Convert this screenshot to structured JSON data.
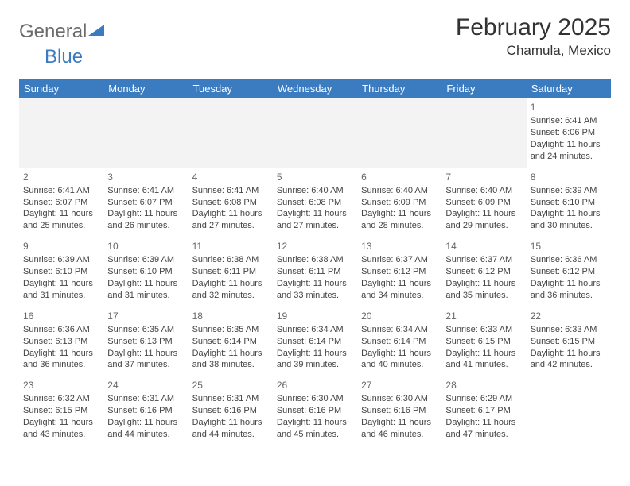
{
  "logo": {
    "part1": "General",
    "part2": "Blue"
  },
  "title": "February 2025",
  "location": "Chamula, Mexico",
  "colors": {
    "header_bg": "#3b7bbf",
    "header_text": "#ffffff",
    "body_text": "#444444",
    "logo_gray": "#6b6b6b",
    "logo_blue": "#3b7bbf",
    "empty_bg": "#f3f3f3"
  },
  "day_headers": [
    "Sunday",
    "Monday",
    "Tuesday",
    "Wednesday",
    "Thursday",
    "Friday",
    "Saturday"
  ],
  "weeks": [
    [
      null,
      null,
      null,
      null,
      null,
      null,
      {
        "n": "1",
        "sr": "Sunrise: 6:41 AM",
        "ss": "Sunset: 6:06 PM",
        "dl": "Daylight: 11 hours and 24 minutes."
      }
    ],
    [
      {
        "n": "2",
        "sr": "Sunrise: 6:41 AM",
        "ss": "Sunset: 6:07 PM",
        "dl": "Daylight: 11 hours and 25 minutes."
      },
      {
        "n": "3",
        "sr": "Sunrise: 6:41 AM",
        "ss": "Sunset: 6:07 PM",
        "dl": "Daylight: 11 hours and 26 minutes."
      },
      {
        "n": "4",
        "sr": "Sunrise: 6:41 AM",
        "ss": "Sunset: 6:08 PM",
        "dl": "Daylight: 11 hours and 27 minutes."
      },
      {
        "n": "5",
        "sr": "Sunrise: 6:40 AM",
        "ss": "Sunset: 6:08 PM",
        "dl": "Daylight: 11 hours and 27 minutes."
      },
      {
        "n": "6",
        "sr": "Sunrise: 6:40 AM",
        "ss": "Sunset: 6:09 PM",
        "dl": "Daylight: 11 hours and 28 minutes."
      },
      {
        "n": "7",
        "sr": "Sunrise: 6:40 AM",
        "ss": "Sunset: 6:09 PM",
        "dl": "Daylight: 11 hours and 29 minutes."
      },
      {
        "n": "8",
        "sr": "Sunrise: 6:39 AM",
        "ss": "Sunset: 6:10 PM",
        "dl": "Daylight: 11 hours and 30 minutes."
      }
    ],
    [
      {
        "n": "9",
        "sr": "Sunrise: 6:39 AM",
        "ss": "Sunset: 6:10 PM",
        "dl": "Daylight: 11 hours and 31 minutes."
      },
      {
        "n": "10",
        "sr": "Sunrise: 6:39 AM",
        "ss": "Sunset: 6:10 PM",
        "dl": "Daylight: 11 hours and 31 minutes."
      },
      {
        "n": "11",
        "sr": "Sunrise: 6:38 AM",
        "ss": "Sunset: 6:11 PM",
        "dl": "Daylight: 11 hours and 32 minutes."
      },
      {
        "n": "12",
        "sr": "Sunrise: 6:38 AM",
        "ss": "Sunset: 6:11 PM",
        "dl": "Daylight: 11 hours and 33 minutes."
      },
      {
        "n": "13",
        "sr": "Sunrise: 6:37 AM",
        "ss": "Sunset: 6:12 PM",
        "dl": "Daylight: 11 hours and 34 minutes."
      },
      {
        "n": "14",
        "sr": "Sunrise: 6:37 AM",
        "ss": "Sunset: 6:12 PM",
        "dl": "Daylight: 11 hours and 35 minutes."
      },
      {
        "n": "15",
        "sr": "Sunrise: 6:36 AM",
        "ss": "Sunset: 6:12 PM",
        "dl": "Daylight: 11 hours and 36 minutes."
      }
    ],
    [
      {
        "n": "16",
        "sr": "Sunrise: 6:36 AM",
        "ss": "Sunset: 6:13 PM",
        "dl": "Daylight: 11 hours and 36 minutes."
      },
      {
        "n": "17",
        "sr": "Sunrise: 6:35 AM",
        "ss": "Sunset: 6:13 PM",
        "dl": "Daylight: 11 hours and 37 minutes."
      },
      {
        "n": "18",
        "sr": "Sunrise: 6:35 AM",
        "ss": "Sunset: 6:14 PM",
        "dl": "Daylight: 11 hours and 38 minutes."
      },
      {
        "n": "19",
        "sr": "Sunrise: 6:34 AM",
        "ss": "Sunset: 6:14 PM",
        "dl": "Daylight: 11 hours and 39 minutes."
      },
      {
        "n": "20",
        "sr": "Sunrise: 6:34 AM",
        "ss": "Sunset: 6:14 PM",
        "dl": "Daylight: 11 hours and 40 minutes."
      },
      {
        "n": "21",
        "sr": "Sunrise: 6:33 AM",
        "ss": "Sunset: 6:15 PM",
        "dl": "Daylight: 11 hours and 41 minutes."
      },
      {
        "n": "22",
        "sr": "Sunrise: 6:33 AM",
        "ss": "Sunset: 6:15 PM",
        "dl": "Daylight: 11 hours and 42 minutes."
      }
    ],
    [
      {
        "n": "23",
        "sr": "Sunrise: 6:32 AM",
        "ss": "Sunset: 6:15 PM",
        "dl": "Daylight: 11 hours and 43 minutes."
      },
      {
        "n": "24",
        "sr": "Sunrise: 6:31 AM",
        "ss": "Sunset: 6:16 PM",
        "dl": "Daylight: 11 hours and 44 minutes."
      },
      {
        "n": "25",
        "sr": "Sunrise: 6:31 AM",
        "ss": "Sunset: 6:16 PM",
        "dl": "Daylight: 11 hours and 44 minutes."
      },
      {
        "n": "26",
        "sr": "Sunrise: 6:30 AM",
        "ss": "Sunset: 6:16 PM",
        "dl": "Daylight: 11 hours and 45 minutes."
      },
      {
        "n": "27",
        "sr": "Sunrise: 6:30 AM",
        "ss": "Sunset: 6:16 PM",
        "dl": "Daylight: 11 hours and 46 minutes."
      },
      {
        "n": "28",
        "sr": "Sunrise: 6:29 AM",
        "ss": "Sunset: 6:17 PM",
        "dl": "Daylight: 11 hours and 47 minutes."
      },
      null
    ]
  ]
}
